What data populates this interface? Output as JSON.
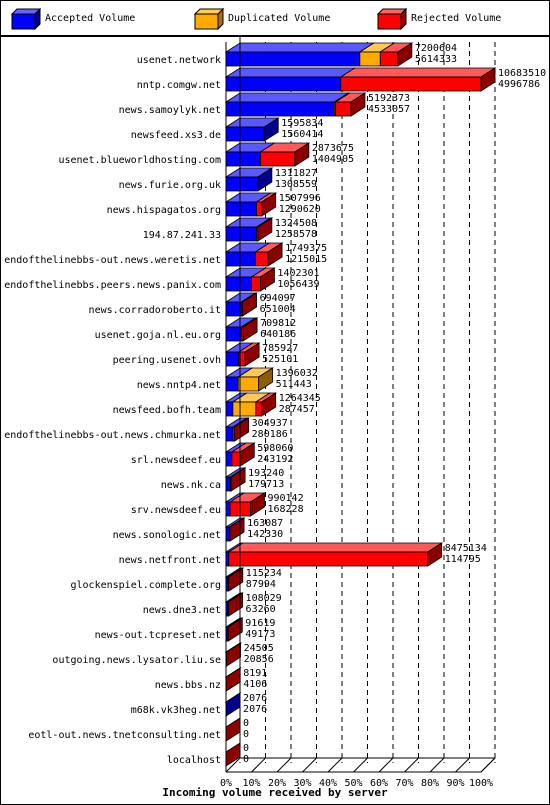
{
  "legend": [
    {
      "label": "Accepted Volume",
      "color": "#0000ff"
    },
    {
      "label": "Duplicated Volume",
      "color": "#ffaa00"
    },
    {
      "label": "Rejected Volume",
      "color": "#ff0000"
    }
  ],
  "chart_data": {
    "type": "bar",
    "orientation": "horizontal",
    "stacked": true,
    "xlabel": "Incoming volume received by server",
    "xlim": [
      0,
      100
    ],
    "x_ticks": [
      "0%",
      "10%",
      "20%",
      "30%",
      "40%",
      "50%",
      "60%",
      "70%",
      "80%",
      "90%",
      "100%"
    ],
    "grid": "dashed vertical",
    "legend_position": "top",
    "categories": [
      "usenet.network",
      "nntp.comgw.net",
      "news.samoylyk.net",
      "newsfeed.xs3.de",
      "usenet.blueworldhosting.com",
      "news.furie.org.uk",
      "news.hispagatos.org",
      "194.87.241.33",
      "endofthelinebbs-out.news.weretis.net",
      "endofthelinebbs.peers.news.panix.com",
      "news.corradoroberto.it",
      "usenet.goja.nl.eu.org",
      "peering.usenet.ovh",
      "news.nntp4.net",
      "newsfeed.bofh.team",
      "endofthelinebbs-out.news.chmurka.net",
      "srl.newsdeef.eu",
      "news.nk.ca",
      "srv.newsdeef.eu",
      "news.sonologic.net",
      "news.netfront.net",
      "glockenspiel.complete.org",
      "news.dne3.net",
      "news-out.tcpreset.net",
      "outgoing.news.lysator.liu.se",
      "news.bbs.nz",
      "m68k.vk3heg.net",
      "eotl-out.news.tnetconsulting.net",
      "localhost"
    ],
    "series": [
      {
        "name": "Accepted Volume",
        "color": "#0000ff",
        "values": [
          52.5,
          45.0,
          42.5,
          15.0,
          13.5,
          12.5,
          12.0,
          12.0,
          11.5,
          10.0,
          6.0,
          6.0,
          5.0,
          4.8,
          2.7,
          2.7,
          2.3,
          1.7,
          1.6,
          1.3,
          1.1,
          0.8,
          0.6,
          0.5,
          0.2,
          0.04,
          0.02,
          0,
          0
        ]
      },
      {
        "name": "Duplicated Volume",
        "color": "#ffaa00",
        "values": [
          8.0,
          0.0,
          0.5,
          0.0,
          0.0,
          0.0,
          0.0,
          0.0,
          0.0,
          0.0,
          0.0,
          0.0,
          0.0,
          8.0,
          9.0,
          0.0,
          0.0,
          0.0,
          0.0,
          0.0,
          0.0,
          0.0,
          0.0,
          0.0,
          0.0,
          0.0,
          0.0,
          0,
          0
        ]
      },
      {
        "name": "Rejected Volume",
        "color": "#ff0000",
        "values": [
          6.9,
          55.0,
          6.0,
          0.0,
          13.5,
          0.0,
          2.0,
          0.5,
          5.0,
          3.5,
          0.5,
          0.7,
          2.5,
          0.0,
          2.3,
          0.7,
          3.3,
          0.3,
          8.0,
          0.3,
          78.0,
          0.3,
          0.4,
          0.4,
          0.05,
          0.04,
          0.0,
          0,
          0
        ]
      }
    ],
    "value_labels": [
      [
        "7200604",
        "5614333"
      ],
      [
        "10683510",
        "4996786"
      ],
      [
        "5192373",
        "4533057"
      ],
      [
        "1595834",
        "1560414"
      ],
      [
        "2873675",
        "1404905"
      ],
      [
        "1311827",
        "1308559"
      ],
      [
        "1507996",
        "1290620"
      ],
      [
        "1324508",
        "1258578"
      ],
      [
        "1749375",
        "1215015"
      ],
      [
        "1402301",
        "1056439"
      ],
      [
        "694097",
        "651004"
      ],
      [
        "709812",
        "640186"
      ],
      [
        "785927",
        "525101"
      ],
      [
        "1396032",
        "511443"
      ],
      [
        "1264345",
        "287457"
      ],
      [
        "304937",
        "280186"
      ],
      [
        "598060",
        "243192"
      ],
      [
        "193240",
        "179713"
      ],
      [
        "990142",
        "168228"
      ],
      [
        "163087",
        "142330"
      ],
      [
        "8475134",
        "114795"
      ],
      [
        "115234",
        "87994"
      ],
      [
        "108029",
        "63260"
      ],
      [
        "91619",
        "49173"
      ],
      [
        "24505",
        "20856"
      ],
      [
        "8191",
        "4106"
      ],
      [
        "2076",
        "2076"
      ],
      [
        "0",
        "0"
      ],
      [
        "0",
        "0"
      ]
    ]
  }
}
